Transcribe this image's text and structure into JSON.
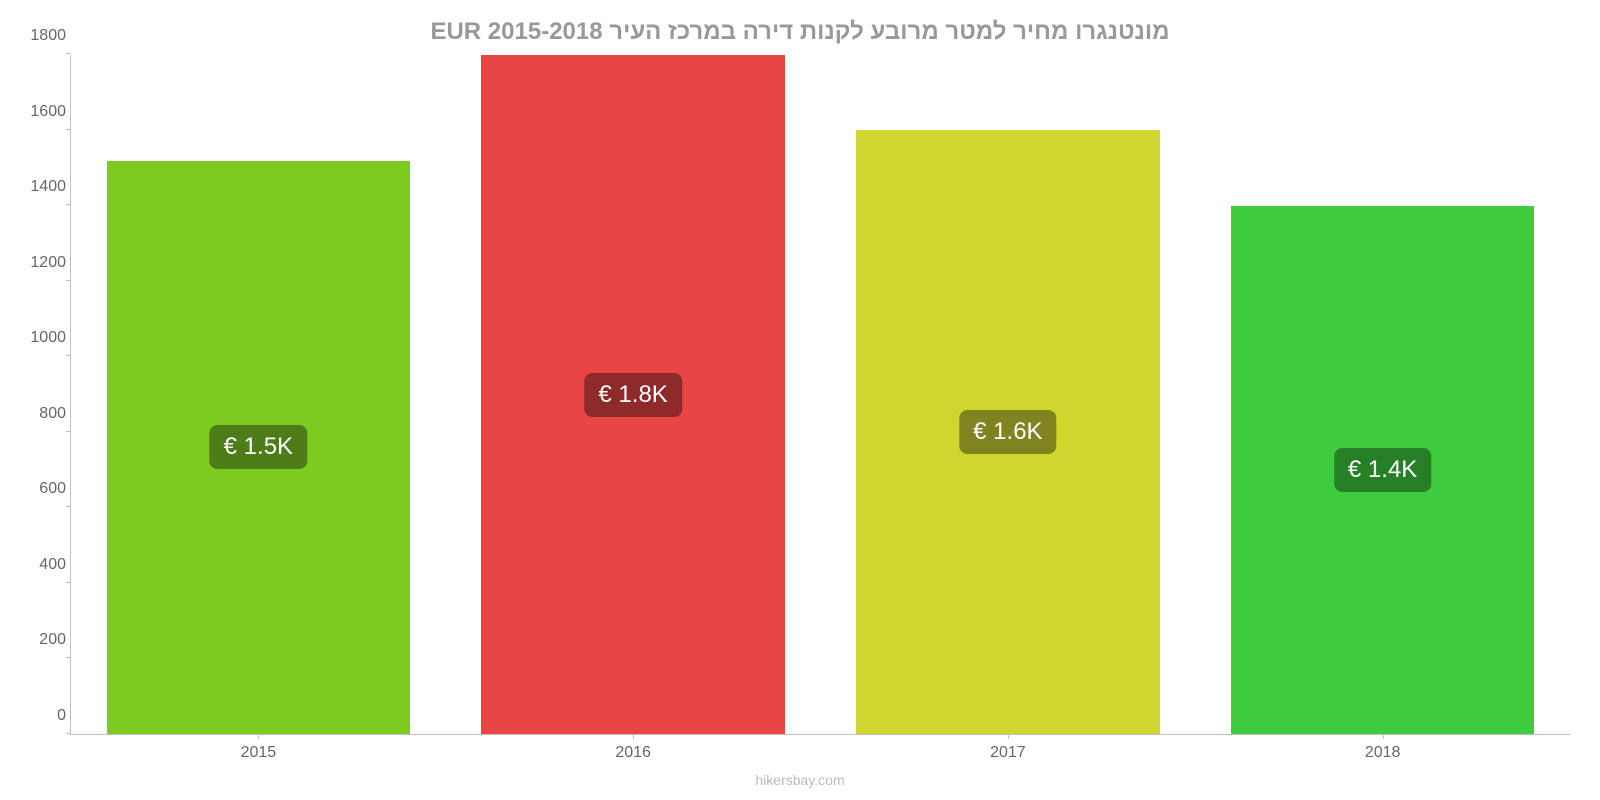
{
  "chart": {
    "type": "bar",
    "title": "מונטנגרו מחיר למטר מרובע לקנות דירה במרכז העיר EUR 2015-2018",
    "title_color": "#999999",
    "title_fontsize": 24,
    "background_color": "#ffffff",
    "axis_color": "#c0c0c0",
    "tick_label_color": "#666666",
    "tick_fontsize": 16,
    "ylim": [
      0,
      1800
    ],
    "ytick_step": 200,
    "yticks": [
      0,
      200,
      400,
      600,
      800,
      1000,
      1200,
      1400,
      1600,
      1800
    ],
    "categories": [
      "2015",
      "2016",
      "2017",
      "2018"
    ],
    "values": [
      1520,
      1800,
      1600,
      1400
    ],
    "value_labels": [
      "€ 1.5K",
      "€ 1.8K",
      "€ 1.6K",
      "€ 1.4K"
    ],
    "bar_colors": [
      "#7ecb20",
      "#e84545",
      "#d0d62d",
      "#3ecc3e"
    ],
    "label_bg_colors": [
      "#4e7c18",
      "#8e2a2a",
      "#808420",
      "#278027"
    ],
    "label_text_color": "#ffffff",
    "label_fontsize": 24,
    "bar_width": 0.81,
    "attribution": "hikersbay.com",
    "attribution_color": "#bbbbbb"
  }
}
